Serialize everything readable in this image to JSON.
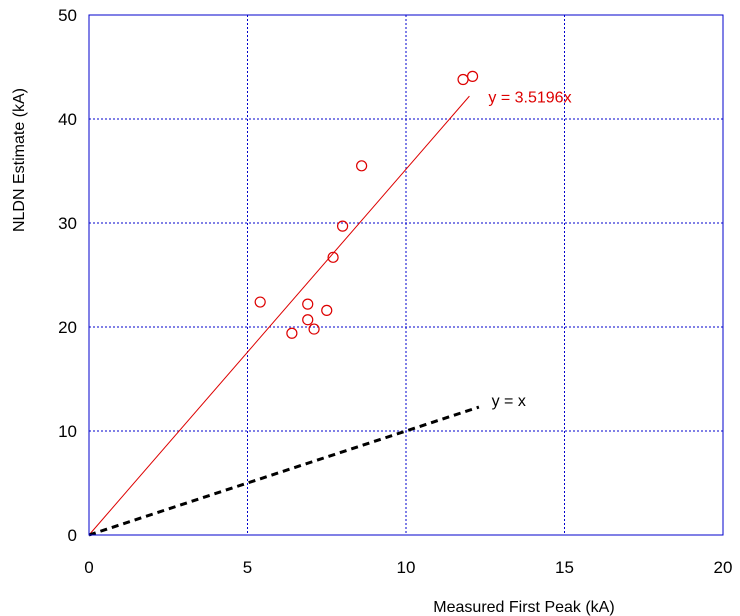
{
  "chart_data": {
    "type": "scatter",
    "xlabel": "Measured First Peak (kA)",
    "ylabel": "NLDN Estimate (kA)",
    "xlim": [
      0,
      20
    ],
    "ylim": [
      0,
      50
    ],
    "x_ticks": [
      "0",
      "5",
      "10",
      "15",
      "20"
    ],
    "y_ticks": [
      "0",
      "10",
      "20",
      "30",
      "40",
      "50"
    ],
    "grid": true,
    "grid_color": "#0000cc",
    "series": [
      {
        "type": "scatter",
        "marker": "open-circle",
        "color": "#dd0000",
        "points": [
          [
            5.4,
            22.4
          ],
          [
            6.4,
            19.4
          ],
          [
            6.9,
            22.2
          ],
          [
            6.9,
            20.7
          ],
          [
            7.1,
            19.8
          ],
          [
            7.5,
            21.6
          ],
          [
            7.7,
            26.7
          ],
          [
            8.0,
            29.7
          ],
          [
            8.6,
            35.5
          ],
          [
            11.8,
            43.8
          ],
          [
            12.1,
            44.1
          ]
        ]
      },
      {
        "type": "line",
        "style": "solid",
        "color": "#dd0000",
        "points": [
          [
            0,
            0
          ],
          [
            12.0,
            42.2
          ]
        ]
      },
      {
        "type": "line",
        "style": "dashed",
        "color": "#000000",
        "points": [
          [
            0,
            0
          ],
          [
            12.3,
            12.3
          ]
        ]
      }
    ],
    "annotations": [
      {
        "text": "y = 3.5196x",
        "x": 12.6,
        "y": 41.6,
        "color": "#dd0000"
      },
      {
        "text": "y = x",
        "x": 12.7,
        "y": 12.4,
        "color": "#000000"
      }
    ]
  }
}
